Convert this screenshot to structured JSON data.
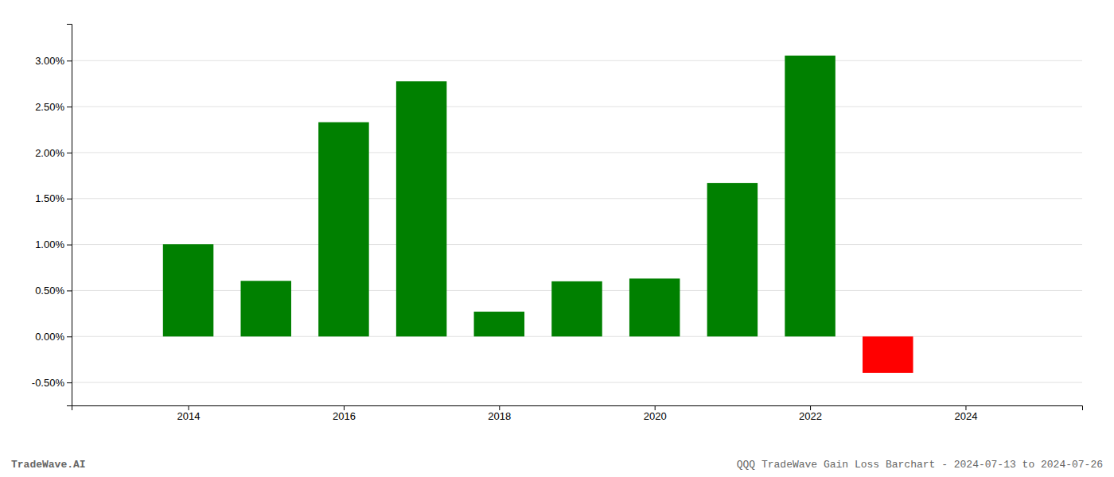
{
  "chart_data": {
    "type": "bar",
    "title": "QQQ TradeWave Gain Loss Barchart - 2024-07-13 to 2024-07-26",
    "annotations": [
      "TradeWave.AI"
    ],
    "x": [
      2014,
      2015,
      2016,
      2017,
      2018,
      2019,
      2020,
      2021,
      2022,
      2023
    ],
    "values": [
      0.01003,
      0.00605,
      0.0233,
      0.02775,
      0.0027,
      0.006,
      0.0063,
      0.0167,
      0.03055,
      -0.00395
    ],
    "colors": [
      "#008000",
      "#008000",
      "#008000",
      "#008000",
      "#008000",
      "#008000",
      "#008000",
      "#008000",
      "#008000",
      "#ff0000"
    ],
    "xlim": [
      2012.5,
      2025.5
    ],
    "xticks": [
      2014,
      2016,
      2018,
      2020,
      2022,
      2024
    ],
    "ylim": [
      -0.0075,
      0.034
    ],
    "yticks": [
      {
        "value": -0.005,
        "label": "-0.50%"
      },
      {
        "value": 0.0,
        "label": "0.00%"
      },
      {
        "value": 0.005,
        "label": "0.50%"
      },
      {
        "value": 0.01,
        "label": "1.00%"
      },
      {
        "value": 0.015,
        "label": "1.50%"
      },
      {
        "value": 0.02,
        "label": "2.00%"
      },
      {
        "value": 0.025,
        "label": "2.50%"
      },
      {
        "value": 0.03,
        "label": "3.00%"
      }
    ],
    "grid": true
  }
}
